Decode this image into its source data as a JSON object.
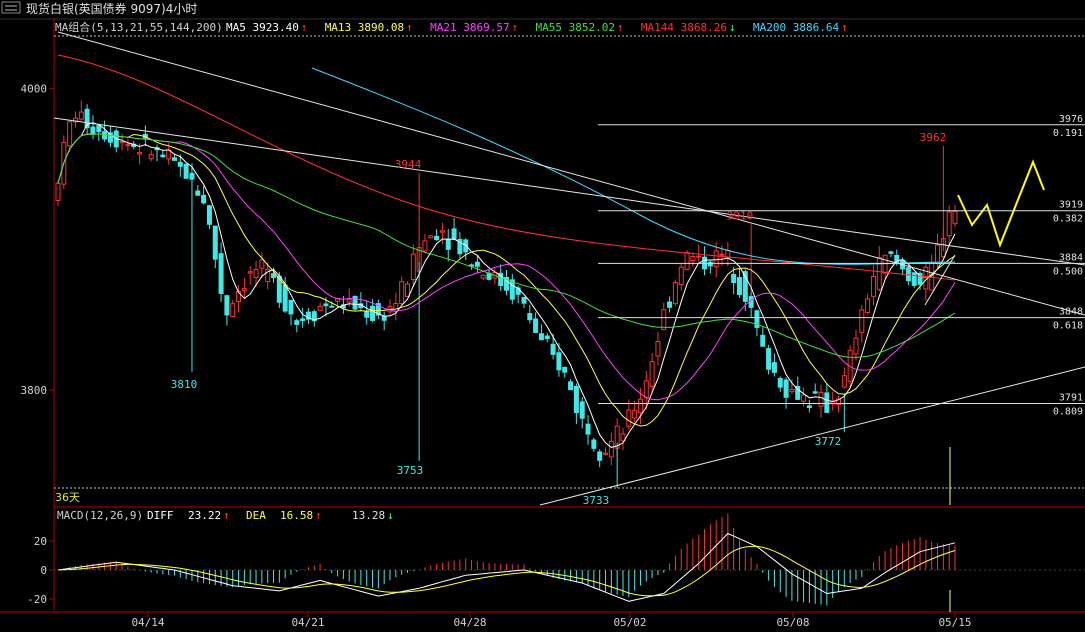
{
  "header": {
    "title": "现货白银(英国债券 9097)4小时",
    "ma_group": "MA组合(5,13,21,55,144,200)",
    "ma_items": [
      {
        "label": "MA5",
        "value": "3923.40",
        "arrow": "↑",
        "color": "#ffffff",
        "arrow_color": "#ff3030"
      },
      {
        "label": "MA13",
        "value": "3890.08",
        "arrow": "↑",
        "color": "#ffff40",
        "arrow_color": "#ff3030"
      },
      {
        "label": "MA21",
        "value": "3869.57",
        "arrow": "↑",
        "color": "#ff40ff",
        "arrow_color": "#ff3030"
      },
      {
        "label": "MA55",
        "value": "3852.02",
        "arrow": "↑",
        "color": "#40e040",
        "arrow_color": "#ff3030"
      },
      {
        "label": "MA144",
        "value": "3868.26",
        "arrow": "↓",
        "color": "#ff3030",
        "arrow_color": "#40ff40"
      },
      {
        "label": "MA200",
        "value": "3886.64",
        "arrow": "↑",
        "color": "#40d8ff",
        "arrow_color": "#ff3030"
      }
    ]
  },
  "macd": {
    "label": "MACD(12,26,9)",
    "diff_label": "DIFF",
    "diff_value": "23.22",
    "diff_arrow": "↑",
    "dea_label": "DEA",
    "dea_value": "16.58",
    "dea_arrow": "↑",
    "hist_value": "13.28",
    "hist_arrow": "↓"
  },
  "bar_count_label": "36天",
  "colors": {
    "up": "#ff3030",
    "down": "#40e8e8",
    "axis": "#b00000",
    "text": "#d0d0d0"
  },
  "chart_data": {
    "type": "candlestick",
    "price_axis": {
      "ylim": [
        3730,
        4020
      ],
      "ticks": [
        4000,
        3800
      ]
    },
    "price_labels": [
      {
        "text": "3810",
        "value": 3810,
        "color": "#40e8e8"
      },
      {
        "text": "3944",
        "value": 3944,
        "color": "#ff3030"
      },
      {
        "text": "3753",
        "value": 3753,
        "color": "#40e8e8"
      },
      {
        "text": "3733",
        "value": 3733,
        "color": "#40e8e8"
      },
      {
        "text": "3910",
        "value": 3910,
        "color": "#ff3030"
      },
      {
        "text": "3772",
        "value": 3772,
        "color": "#40e8e8"
      },
      {
        "text": "3962",
        "value": 3962,
        "color": "#ff3030"
      }
    ],
    "fib_levels": [
      {
        "price": "3976",
        "ratio": "0.191"
      },
      {
        "price": "3919",
        "ratio": "0.382"
      },
      {
        "price": "3884",
        "ratio": "0.500"
      },
      {
        "price": "3848",
        "ratio": "0.618"
      },
      {
        "price": "3791",
        "ratio": "0.809"
      }
    ],
    "x_ticks": [
      "04/14",
      "04/21",
      "04/28",
      "05/02",
      "05/08",
      "05/15"
    ],
    "macd_axis": {
      "ylim": [
        -25,
        30
      ],
      "ticks": [
        20,
        0,
        -20
      ]
    }
  }
}
